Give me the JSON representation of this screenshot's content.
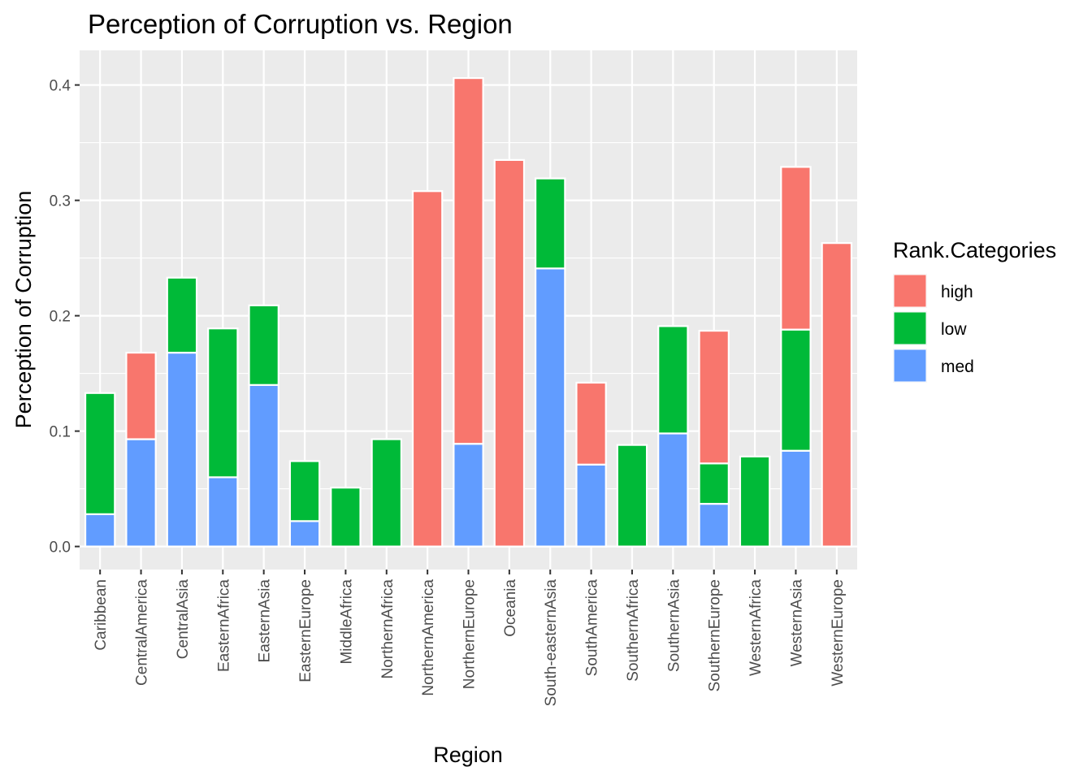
{
  "chart_data": {
    "type": "bar",
    "stacked": true,
    "title": "Perception of Corruption vs. Region",
    "xlabel": "Region",
    "ylabel": "Perception of Corruption",
    "ylim": [
      -0.02,
      0.43
    ],
    "yticks": [
      0.0,
      0.1,
      0.2,
      0.3,
      0.4
    ],
    "ytick_labels": [
      "0.0",
      "0.1",
      "0.2",
      "0.3",
      "0.4"
    ],
    "grid": true,
    "legend_position": "right",
    "legend_title": "Rank.Categories",
    "categories": [
      "Caribbean",
      "CentralAmerica",
      "CentralAsia",
      "EasternAfrica",
      "EasternAsia",
      "EasternEurope",
      "MiddleAfrica",
      "NorthernAfrica",
      "NorthernAmerica",
      "NorthernEurope",
      "Oceania",
      "South-easternAsia",
      "SouthAmerica",
      "SouthernAfrica",
      "SouthernAsia",
      "SouthernEurope",
      "WesternAfrica",
      "WesternAsia",
      "WesternEurope"
    ],
    "stack_order": [
      "med",
      "low",
      "high"
    ],
    "series": [
      {
        "name": "high",
        "color": "#F8766D",
        "values": [
          0,
          0.075,
          0,
          0,
          0,
          0,
          0,
          0,
          0.308,
          0.317,
          0.335,
          0,
          0.071,
          0,
          0,
          0.115,
          0,
          0.141,
          0.263
        ]
      },
      {
        "name": "low",
        "color": "#00BA38",
        "values": [
          0.105,
          0,
          0.065,
          0.129,
          0.069,
          0.052,
          0.051,
          0.093,
          0,
          0,
          0,
          0.078,
          0,
          0.088,
          0.093,
          0.035,
          0.078,
          0.105,
          0
        ]
      },
      {
        "name": "med",
        "color": "#619CFF",
        "values": [
          0.028,
          0.093,
          0.168,
          0.06,
          0.14,
          0.022,
          0,
          0,
          0,
          0.089,
          0,
          0.241,
          0.071,
          0,
          0.098,
          0.037,
          0,
          0.083,
          0
        ]
      }
    ]
  }
}
